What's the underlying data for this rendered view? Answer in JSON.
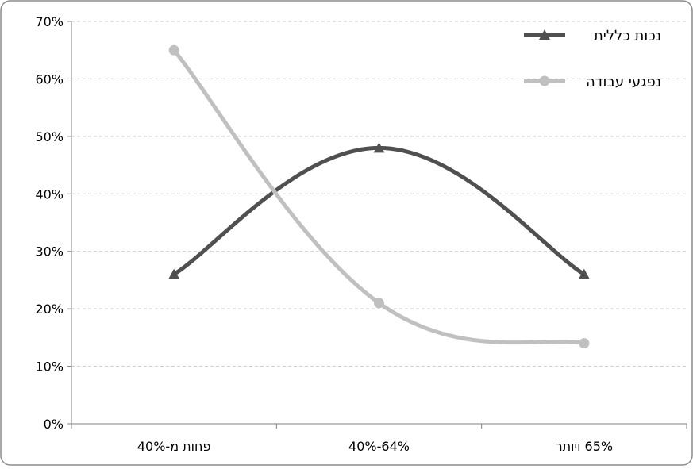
{
  "chart_data": {
    "type": "line",
    "categories": [
      "פחות מ-40%",
      "64%-40%",
      "65% ויותר"
    ],
    "series": [
      {
        "name": "נכות כללית",
        "values": [
          26,
          48,
          26
        ],
        "color": "#505050",
        "marker": "triangle"
      },
      {
        "name": "נפגעי עבודה",
        "values": [
          65,
          21,
          14
        ],
        "color": "#c0c0c0",
        "marker": "circle"
      }
    ],
    "ylim": [
      0,
      70
    ],
    "yticks": [
      "0%",
      "10%",
      "20%",
      "30%",
      "40%",
      "50%",
      "60%",
      "70%"
    ],
    "grid": true,
    "legend": "top-right",
    "smooth": true
  }
}
